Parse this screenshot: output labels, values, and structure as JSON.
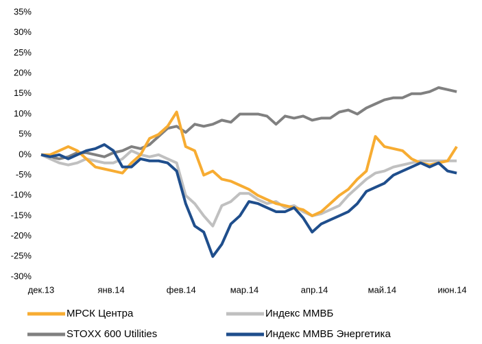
{
  "chart_data": {
    "type": "line",
    "x": [
      0,
      4,
      8,
      12,
      16,
      20,
      24,
      28,
      32,
      36,
      40,
      44,
      48,
      52,
      56,
      60,
      64,
      68,
      72,
      76,
      80,
      84,
      88,
      92,
      96,
      100,
      104,
      108,
      112,
      116,
      120,
      124,
      128,
      132,
      136,
      140,
      144,
      148,
      152,
      156,
      160,
      164,
      168,
      172,
      176,
      180,
      184
    ],
    "xlim": [
      0,
      187
    ],
    "xticks": [
      {
        "value": 0,
        "label": "дек.13"
      },
      {
        "value": 31,
        "label": "янв.14"
      },
      {
        "value": 62,
        "label": "фев.14"
      },
      {
        "value": 90,
        "label": "мар.14"
      },
      {
        "value": 121,
        "label": "апр.14"
      },
      {
        "value": 151,
        "label": "май.14"
      },
      {
        "value": 182,
        "label": "июн.14"
      }
    ],
    "ylim": [
      -30,
      35
    ],
    "yticks": [
      {
        "value": -30,
        "label": "-30%"
      },
      {
        "value": -25,
        "label": "-25%"
      },
      {
        "value": -20,
        "label": "-20%"
      },
      {
        "value": -15,
        "label": "-15%"
      },
      {
        "value": -10,
        "label": "-10%"
      },
      {
        "value": -5,
        "label": "-5%"
      },
      {
        "value": 0,
        "label": "0%"
      },
      {
        "value": 5,
        "label": "5%"
      },
      {
        "value": 10,
        "label": "10%"
      },
      {
        "value": 15,
        "label": "15%"
      },
      {
        "value": 20,
        "label": "20%"
      },
      {
        "value": 25,
        "label": "25%"
      },
      {
        "value": 30,
        "label": "30%"
      },
      {
        "value": 35,
        "label": "35%"
      }
    ],
    "grid": false,
    "legend": "bottom",
    "series": [
      {
        "name": "STOXX 600 Utilities",
        "color": "#808080",
        "values": [
          0,
          -0.5,
          -1,
          -0.5,
          0.5,
          0.5,
          0,
          -0.5,
          0.5,
          1,
          2,
          1.5,
          2.5,
          4.5,
          6.5,
          7,
          5.5,
          7.5,
          7,
          7.5,
          8.5,
          8,
          10,
          10,
          10,
          9.5,
          7.5,
          9.5,
          9,
          9.5,
          8.5,
          9,
          9,
          10.5,
          11,
          10,
          11.5,
          12.5,
          13.5,
          14,
          14,
          15,
          15,
          15.5,
          16.5,
          16,
          15.5
        ]
      },
      {
        "name": "Индекс ММВБ",
        "color": "#c0c0c0",
        "values": [
          0,
          -1,
          -2,
          -2.5,
          -2,
          -1,
          -1.5,
          -2,
          -2,
          -1,
          1,
          0,
          -0.5,
          0,
          -1,
          -2,
          -10,
          -12,
          -15,
          -17.5,
          -12.5,
          -11.5,
          -9.5,
          -9.5,
          -11,
          -12,
          -11.5,
          -13,
          -12.5,
          -14,
          -15,
          -14.5,
          -13.5,
          -12.5,
          -10,
          -8,
          -6,
          -4.5,
          -4,
          -3,
          -2.5,
          -2,
          -1.5,
          -1.5,
          -1.5,
          -1.5,
          -1.5
        ]
      },
      {
        "name": "МРСК Центра",
        "color": "#f7ac32",
        "values": [
          0,
          0,
          1,
          2,
          1,
          -1,
          -3,
          -3.5,
          -4,
          -4.5,
          -2,
          0,
          4,
          5,
          7,
          10.5,
          2,
          1,
          -5,
          -4,
          -6,
          -6.5,
          -7.5,
          -8.5,
          -10,
          -11,
          -12,
          -12.5,
          -13,
          -13.5,
          -15,
          -14,
          -12,
          -10,
          -8.5,
          -6,
          -4,
          4.5,
          2,
          1.5,
          1,
          -1,
          -2,
          -2.5,
          -2,
          -1.5,
          2
        ]
      },
      {
        "name": "Индекс ММВБ Энергетика",
        "color": "#1f4e8c",
        "values": [
          0,
          -0.5,
          0,
          -1,
          0,
          1,
          1.5,
          2.5,
          1,
          -3,
          -3,
          -1,
          -1.5,
          -1.5,
          -2,
          -4,
          -12,
          -17.5,
          -19,
          -25,
          -22,
          -17,
          -15,
          -11.5,
          -12,
          -13,
          -14,
          -14,
          -13,
          -15.5,
          -19,
          -17,
          -16,
          -15,
          -14,
          -12,
          -9,
          -8,
          -7,
          -5,
          -4,
          -3,
          -2,
          -3,
          -2,
          -4,
          -4.5
        ]
      }
    ]
  }
}
